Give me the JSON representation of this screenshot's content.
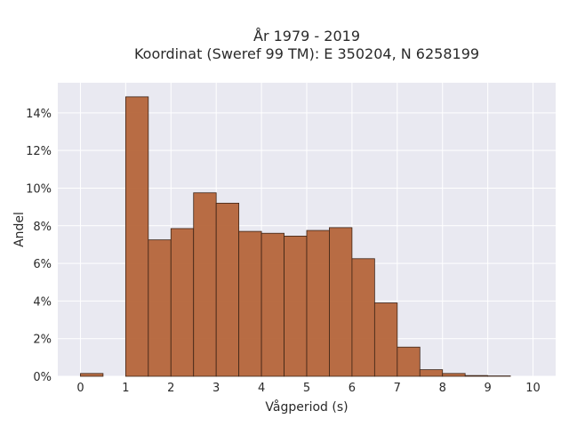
{
  "chart_data": {
    "type": "bar",
    "title_lines": [
      "År 1979 - 2019",
      "Koordinat (Sweref 99 TM): E 350204, N 6258199"
    ],
    "xlabel": "Vågperiod (s)",
    "ylabel": "Andel",
    "bin_width": 0.5,
    "bin_starts": [
      0,
      0.5,
      1,
      1.5,
      2,
      2.5,
      3,
      3.5,
      4,
      4.5,
      5,
      5.5,
      6,
      6.5,
      7,
      7.5,
      8,
      8.5,
      9,
      9.5
    ],
    "values": [
      0.15,
      0,
      14.85,
      7.25,
      7.85,
      9.75,
      9.2,
      7.7,
      7.6,
      7.45,
      7.75,
      7.9,
      6.25,
      3.9,
      1.55,
      0.35,
      0.15,
      0.04,
      0.02,
      0
    ],
    "x_ticks": [
      0,
      1,
      2,
      3,
      4,
      5,
      6,
      7,
      8,
      9,
      10
    ],
    "y_ticks": [
      0,
      2,
      4,
      6,
      8,
      10,
      12,
      14
    ],
    "y_tick_suffix": "%",
    "xlim": [
      -0.5,
      10.5
    ],
    "ylim": [
      0,
      15.6
    ],
    "grid": true,
    "colors": {
      "bar_fill": "#b5653a",
      "bar_stroke": "#3d2416",
      "plot_bg": "#e9e9f1",
      "grid": "#ffffff"
    }
  }
}
